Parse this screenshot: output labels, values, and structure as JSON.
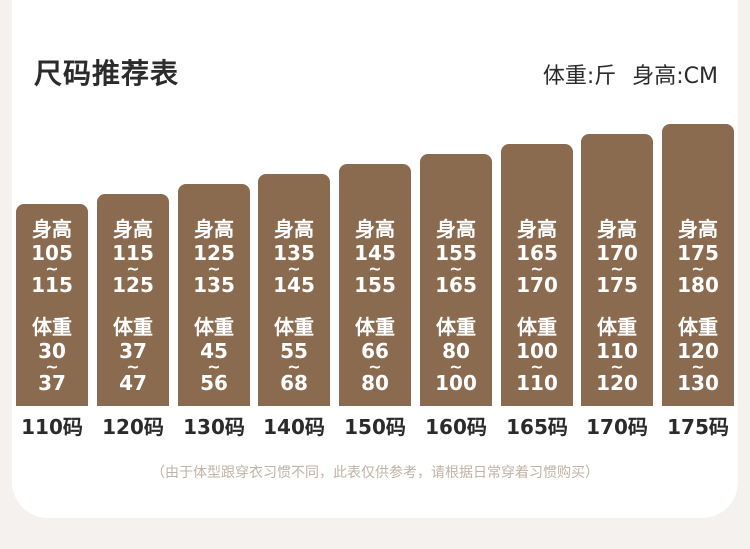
{
  "title": "尺码推荐表",
  "units": {
    "weight": "体重:斤",
    "height": "身高:CM"
  },
  "labels": {
    "height": "身高",
    "weight": "体重",
    "tilde": "~"
  },
  "sizes": [
    {
      "size": "110码",
      "height_min": "105",
      "height_max": "115",
      "weight_min": "30",
      "weight_max": "37"
    },
    {
      "size": "120码",
      "height_min": "115",
      "height_max": "125",
      "weight_min": "37",
      "weight_max": "47"
    },
    {
      "size": "130码",
      "height_min": "125",
      "height_max": "135",
      "weight_min": "45",
      "weight_max": "56"
    },
    {
      "size": "140码",
      "height_min": "135",
      "height_max": "145",
      "weight_min": "55",
      "weight_max": "68"
    },
    {
      "size": "150码",
      "height_min": "145",
      "height_max": "155",
      "weight_min": "66",
      "weight_max": "80"
    },
    {
      "size": "160码",
      "height_min": "155",
      "height_max": "165",
      "weight_min": "80",
      "weight_max": "100"
    },
    {
      "size": "165码",
      "height_min": "165",
      "height_max": "170",
      "weight_min": "100",
      "weight_max": "110"
    },
    {
      "size": "170码",
      "height_min": "170",
      "height_max": "175",
      "weight_min": "110",
      "weight_max": "120"
    },
    {
      "size": "175码",
      "height_min": "175",
      "height_max": "180",
      "weight_min": "120",
      "weight_max": "130"
    }
  ],
  "note": "（由于体型跟穿衣习惯不同，此表仅供参考，请根据日常穿着习惯购买）",
  "colors": {
    "bar": "#8b6b4f",
    "text": "#2b2b2b",
    "note": "#c0b3a6"
  }
}
